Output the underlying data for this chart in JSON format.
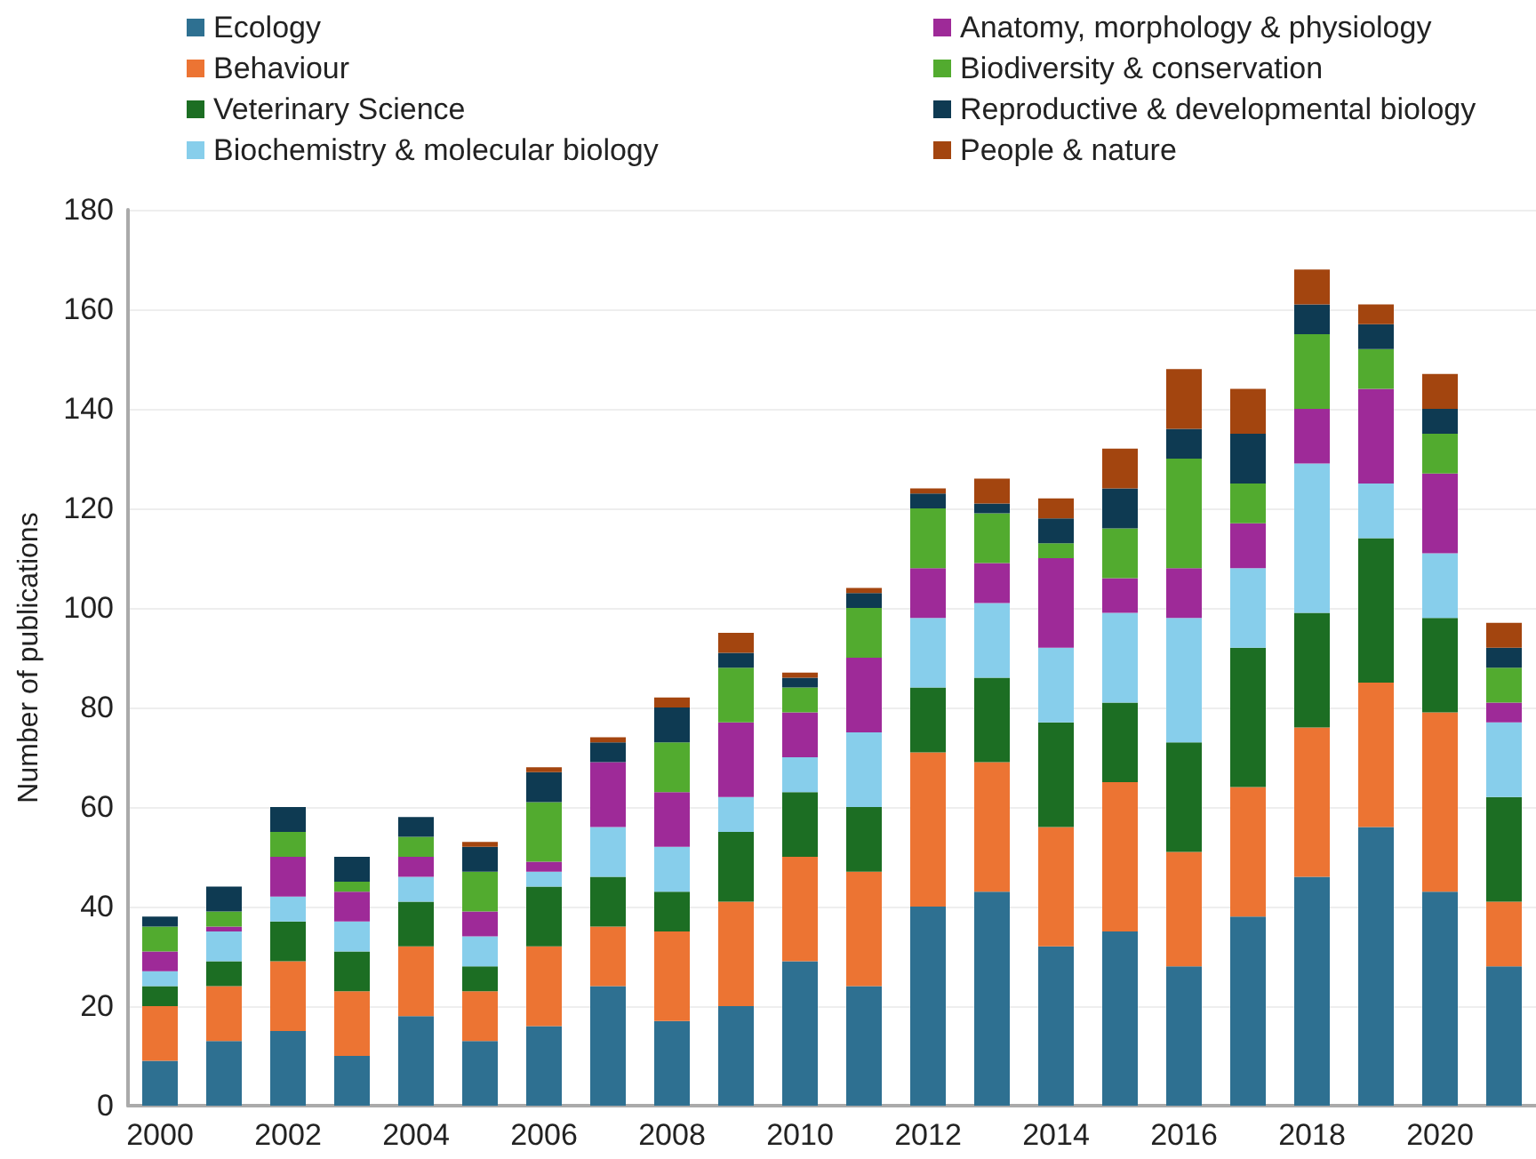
{
  "chart_data": {
    "type": "bar",
    "stacked": true,
    "ylabel": "Number of publications",
    "categories": [
      "2000",
      null,
      "2002",
      null,
      "2004",
      null,
      "2006",
      null,
      "2008",
      null,
      "2010",
      null,
      "2012",
      null,
      "2014",
      null,
      "2016",
      null,
      "2018",
      null,
      "2020",
      null
    ],
    "series": [
      {
        "name": "Ecology",
        "color": "#2e7091",
        "values": [
          9,
          13,
          15,
          10,
          18,
          13,
          16,
          24,
          17,
          20,
          29,
          24,
          40,
          43,
          32,
          35,
          28,
          38,
          46,
          56,
          43,
          28
        ]
      },
      {
        "name": "Behaviour",
        "color": "#ec7433",
        "values": [
          11,
          11,
          14,
          13,
          14,
          10,
          16,
          12,
          18,
          21,
          21,
          23,
          31,
          26,
          24,
          30,
          23,
          26,
          30,
          29,
          36,
          13
        ]
      },
      {
        "name": "Veterinary Science",
        "color": "#1c6e23",
        "values": [
          4,
          5,
          8,
          8,
          9,
          5,
          12,
          10,
          8,
          14,
          13,
          13,
          13,
          17,
          21,
          16,
          22,
          28,
          23,
          29,
          19,
          21
        ]
      },
      {
        "name": "Biochemistry & molecular biology",
        "color": "#87ceeb",
        "values": [
          3,
          6,
          5,
          6,
          5,
          6,
          3,
          10,
          9,
          7,
          7,
          15,
          14,
          15,
          15,
          18,
          25,
          16,
          30,
          11,
          13,
          15
        ]
      },
      {
        "name": "Anatomy, morphology & physiology",
        "color": "#9e2a98",
        "values": [
          4,
          1,
          8,
          6,
          4,
          5,
          2,
          13,
          11,
          15,
          9,
          15,
          10,
          8,
          18,
          7,
          10,
          9,
          11,
          19,
          16,
          4
        ]
      },
      {
        "name": "Biodiversity & conservation",
        "color": "#52ab2f",
        "values": [
          5,
          3,
          5,
          2,
          4,
          8,
          12,
          0,
          10,
          11,
          5,
          10,
          12,
          10,
          3,
          10,
          22,
          8,
          15,
          8,
          8,
          7
        ]
      },
      {
        "name": "Reproductive & developmental biology",
        "color": "#0e3a52",
        "values": [
          2,
          5,
          5,
          5,
          4,
          5,
          6,
          4,
          7,
          3,
          2,
          3,
          3,
          2,
          5,
          8,
          6,
          10,
          6,
          5,
          5,
          4
        ]
      },
      {
        "name": "People & nature",
        "color": "#a3450f",
        "values": [
          0,
          0,
          0,
          0,
          0,
          1,
          1,
          1,
          2,
          4,
          1,
          1,
          1,
          5,
          4,
          8,
          12,
          9,
          7,
          4,
          7,
          5
        ]
      }
    ],
    "ylim": [
      0,
      180
    ],
    "yticks": [
      0,
      20,
      40,
      60,
      80,
      100,
      120,
      140,
      160,
      180
    ],
    "grid": "y",
    "legend": "top"
  }
}
